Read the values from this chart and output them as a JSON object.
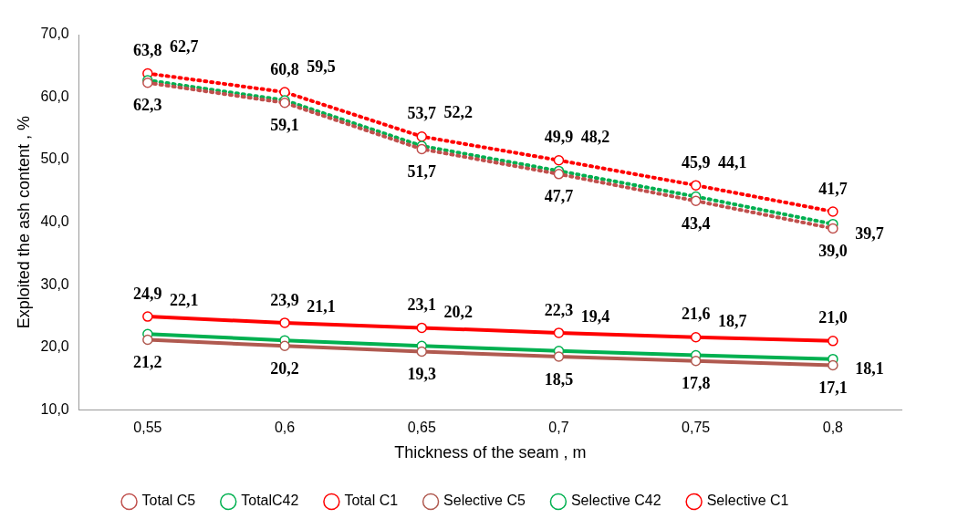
{
  "chart_data": {
    "type": "line",
    "xlabel": "Thickness of the seam , m",
    "ylabel": "Exploited the ash content , %",
    "categories": [
      "0,55",
      "0,6",
      "0,65",
      "0,7",
      "0,75",
      "0,8"
    ],
    "ylim": [
      10,
      70
    ],
    "yticks": [
      {
        "value": 10,
        "label": "10,0"
      },
      {
        "value": 20,
        "label": "20,0"
      },
      {
        "value": 30,
        "label": "30,0"
      },
      {
        "value": 40,
        "label": "40,0"
      },
      {
        "value": 50,
        "label": "50,0"
      },
      {
        "value": 60,
        "label": "60,0"
      },
      {
        "value": 70,
        "label": "70,0"
      }
    ],
    "grid": false,
    "legend": "bottom",
    "marker": "circle",
    "series": [
      {
        "name": "Total C5",
        "color": "#c0504d",
        "line_style": "dotted",
        "values": [
          62.3,
          59.1,
          51.7,
          47.7,
          43.4,
          39.0
        ],
        "value_labels": [
          "62,3",
          "59,1",
          "51,7",
          "47,7",
          "43,4",
          "39,0"
        ]
      },
      {
        "name": "TotalC42",
        "color": "#00b050",
        "line_style": "dotted",
        "values": [
          62.7,
          59.5,
          52.2,
          48.2,
          44.1,
          39.7
        ],
        "value_labels": [
          "62,7",
          "59,5",
          "52,2",
          "48,2",
          "44,1",
          "39,7"
        ]
      },
      {
        "name": "Total C1",
        "color": "#ff0000",
        "line_style": "dotted",
        "values": [
          63.8,
          60.8,
          53.7,
          49.9,
          45.9,
          41.7
        ],
        "value_labels": [
          "63,8",
          "60,8",
          "53,7",
          "49,9",
          "45,9",
          "41,7"
        ]
      },
      {
        "name": "Selective C5",
        "color": "#b05a50",
        "line_style": "solid",
        "values": [
          21.2,
          20.2,
          19.3,
          18.5,
          17.8,
          17.1
        ],
        "value_labels": [
          "21,2",
          "20,2",
          "19,3",
          "18,5",
          "17,8",
          "17,1"
        ]
      },
      {
        "name": "Selective C42",
        "color": "#00b050",
        "line_style": "solid",
        "values": [
          22.1,
          21.1,
          20.2,
          19.4,
          18.7,
          18.1
        ],
        "value_labels": [
          "22,1",
          "21,1",
          "20,2",
          "19,4",
          "18,7",
          "18,1"
        ]
      },
      {
        "name": "Selective C1",
        "color": "#ff0000",
        "line_style": "solid",
        "values": [
          24.9,
          23.9,
          23.1,
          22.3,
          21.6,
          21.0
        ],
        "value_labels": [
          "24,9",
          "23,9",
          "23,1",
          "22,3",
          "21,6",
          "21,0"
        ]
      }
    ]
  }
}
